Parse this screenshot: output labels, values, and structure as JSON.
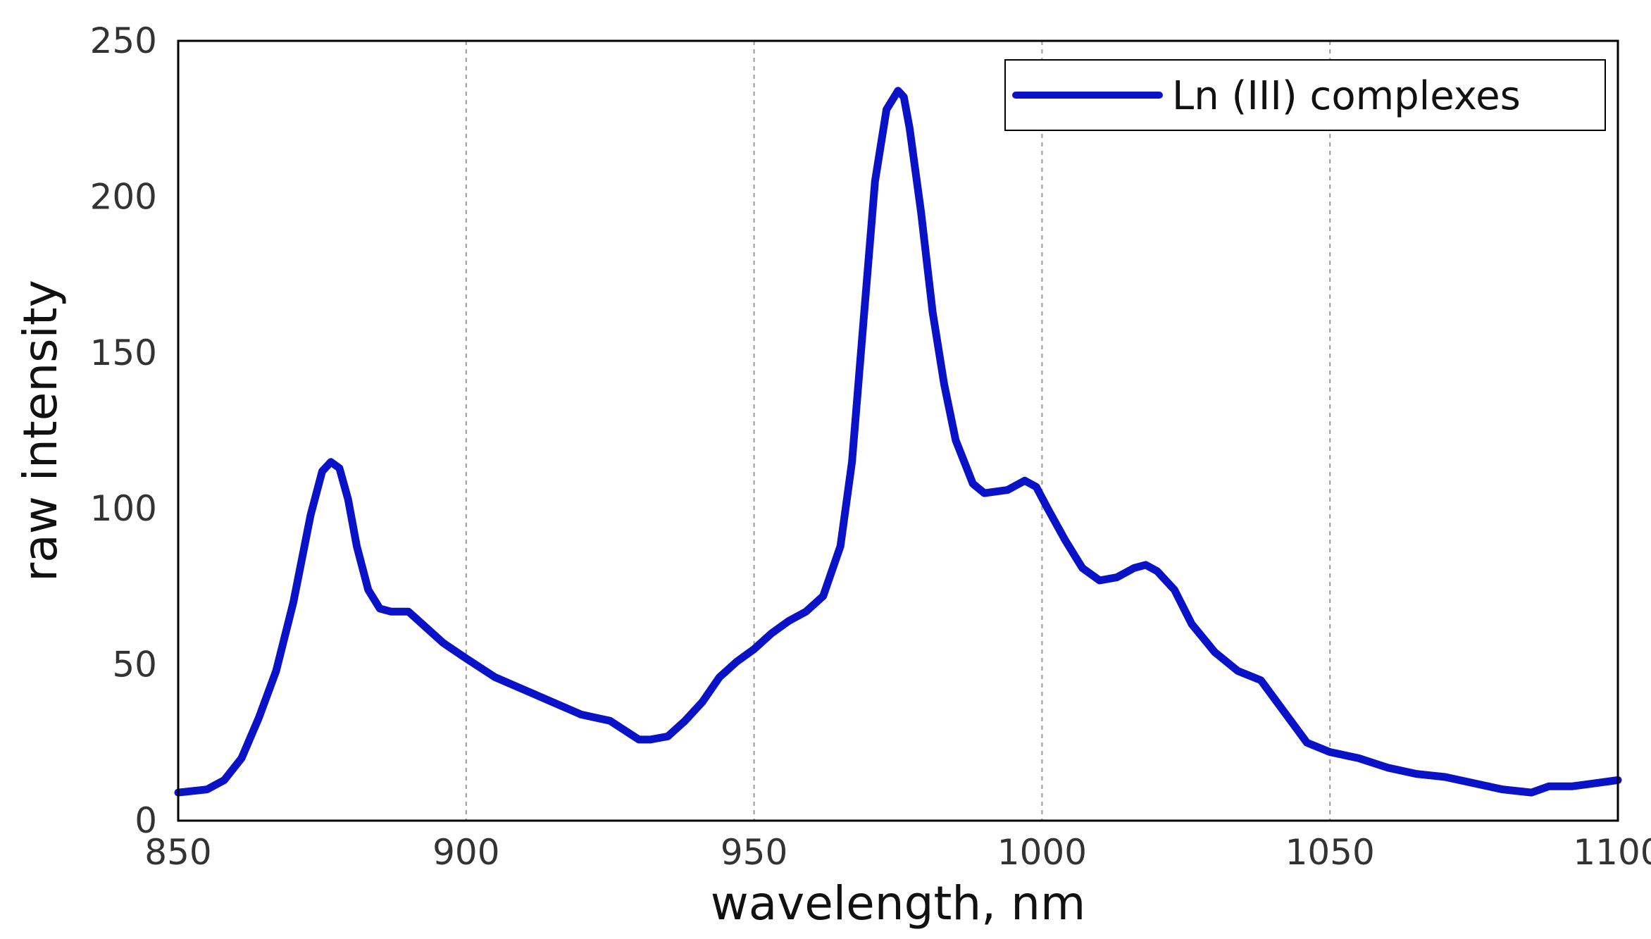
{
  "chart_data": {
    "type": "line",
    "title": "",
    "xlabel": "wavelength, nm",
    "ylabel": "raw intensity",
    "xlim": [
      850,
      1100
    ],
    "ylim": [
      0,
      250
    ],
    "xticks": [
      850,
      900,
      950,
      1000,
      1050,
      1100
    ],
    "yticks": [
      0,
      50,
      100,
      150,
      200,
      250
    ],
    "grid": "vertical dashed",
    "legend_position": "top-right",
    "series": [
      {
        "name": "Ln (III) complexes",
        "color": "#0a12c8",
        "x": [
          850,
          855,
          858,
          861,
          864,
          867,
          870,
          873,
          875,
          876.5,
          878,
          879.5,
          881,
          883,
          885,
          887,
          890,
          893,
          896,
          900,
          905,
          910,
          915,
          920,
          925,
          930,
          932,
          935,
          938,
          941,
          944,
          947,
          950,
          953,
          956,
          959,
          962,
          965,
          967,
          969,
          971,
          973,
          975,
          976,
          977,
          979,
          981,
          983,
          985,
          988,
          990,
          994,
          997,
          999,
          1001,
          1004,
          1007,
          1010,
          1013,
          1016,
          1018,
          1020,
          1023,
          1026,
          1030,
          1034,
          1038,
          1042,
          1046,
          1050,
          1055,
          1060,
          1065,
          1070,
          1075,
          1080,
          1085,
          1088,
          1092,
          1096,
          1100
        ],
        "y": [
          9,
          10,
          13,
          20,
          33,
          48,
          70,
          98,
          112,
          115,
          113,
          103,
          88,
          74,
          68,
          67,
          67,
          62,
          57,
          52,
          46,
          42,
          38,
          34,
          32,
          26,
          26,
          27,
          32,
          38,
          46,
          51,
          55,
          60,
          64,
          67,
          72,
          88,
          115,
          160,
          205,
          228,
          234,
          232,
          222,
          195,
          163,
          140,
          122,
          108,
          105,
          106,
          109,
          107,
          100,
          90,
          81,
          77,
          78,
          81,
          82,
          80,
          74,
          63,
          54,
          48,
          45,
          35,
          25,
          22,
          20,
          17,
          15,
          14,
          12,
          10,
          9,
          11,
          11,
          12,
          13
        ]
      }
    ]
  }
}
